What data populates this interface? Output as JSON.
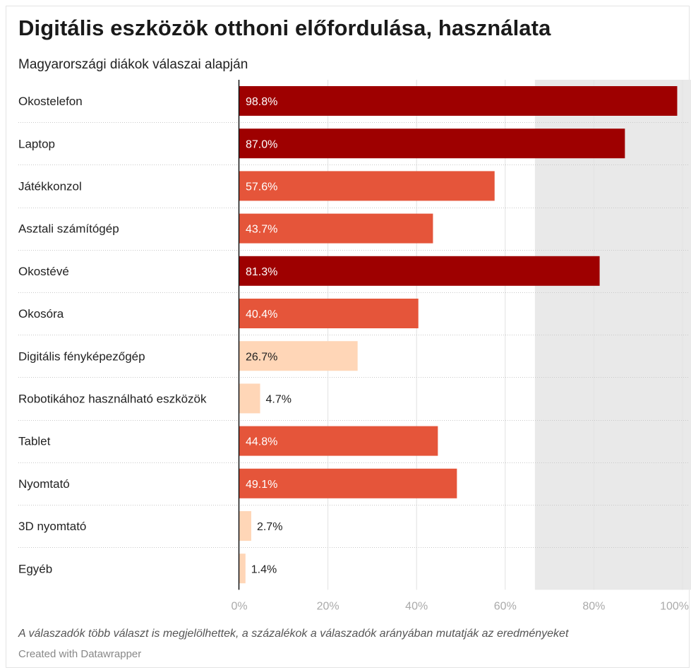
{
  "header": {
    "title": "Digitális eszközök otthoni előfordulása, használata",
    "subtitle": "Magyarországi diákok válaszai alapján"
  },
  "footer": {
    "notes": "A válaszadók több választ is megjelölhettek, a százalékok a válaszadók arányában mutatják az eredményeket",
    "credit": "Created with Datawrapper"
  },
  "chart_data": {
    "type": "bar",
    "orientation": "horizontal",
    "categories": [
      "Okostelefon",
      "Laptop",
      "Játékkonzol",
      "Asztali számítógép",
      "Okostévé",
      "Okosóra",
      "Digitális fényképezőgép",
      "Robotikához használható eszközök",
      "Tablet",
      "Nyomtató",
      "3D nyomtató",
      "Egyéb"
    ],
    "values": [
      98.8,
      87.0,
      57.6,
      43.7,
      81.3,
      40.4,
      26.7,
      4.7,
      44.8,
      49.1,
      2.7,
      1.4
    ],
    "value_labels": [
      "98.8%",
      "87.0%",
      "57.6%",
      "43.7%",
      "81.3%",
      "40.4%",
      "26.7%",
      "4.7%",
      "44.8%",
      "49.1%",
      "2.7%",
      "1.4%"
    ],
    "xlim": [
      0,
      100
    ],
    "x_ticks": [
      0,
      20,
      40,
      60,
      80,
      100
    ],
    "x_tick_labels": [
      "0%",
      "20%",
      "40%",
      "60%",
      "80%",
      "100%"
    ],
    "shaded_range": [
      66.7,
      100
    ],
    "grid": true,
    "colors": {
      "high": "#9e0000",
      "mid": "#e5553a",
      "low": "#ffd6b7",
      "shade": "#e9e9e9",
      "grid": "#e2e2e2",
      "row_separator": "#c8c8c8",
      "axis": "#111111",
      "tick_text": "#aaaaaa"
    },
    "color_thresholds": {
      "high_min": 60,
      "mid_min": 30
    }
  }
}
